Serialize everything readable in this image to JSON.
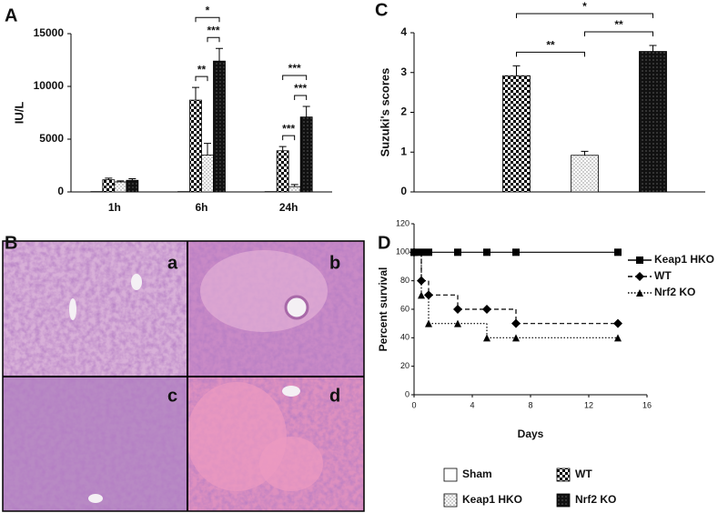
{
  "chart_data": [
    {
      "panel": "A",
      "type": "bar",
      "y_label": "IU/L",
      "categories": [
        "1h",
        "6h",
        "24h"
      ],
      "ylim": [
        0,
        15000
      ],
      "yticks": [
        0,
        5000,
        10000,
        15000
      ],
      "series": [
        {
          "name": "Sham",
          "pattern": "blank",
          "values": [
            30,
            30,
            30
          ]
        },
        {
          "name": "WT",
          "pattern": "checker",
          "values": [
            1150,
            8700,
            3900
          ],
          "errors": [
            150,
            1200,
            400
          ]
        },
        {
          "name": "Keap1 HKO",
          "pattern": "dots",
          "values": [
            950,
            3500,
            500
          ],
          "errors": [
            100,
            1100,
            200
          ]
        },
        {
          "name": "Nrf2 KO",
          "pattern": "dark",
          "values": [
            1100,
            12400,
            7100
          ],
          "errors": [
            150,
            1200,
            1000
          ]
        }
      ],
      "annotations": [
        {
          "text": "**",
          "category": 1,
          "between": [
            1,
            2
          ]
        },
        {
          "text": "***",
          "category": 1,
          "between": [
            2,
            3
          ]
        },
        {
          "text": "*",
          "category": 1,
          "between": [
            1,
            3
          ]
        },
        {
          "text": "***",
          "category": 2,
          "between": [
            1,
            2
          ]
        },
        {
          "text": "***",
          "category": 2,
          "between": [
            2,
            3
          ]
        },
        {
          "text": "***",
          "category": 2,
          "between": [
            1,
            3
          ]
        }
      ]
    },
    {
      "panel": "C",
      "type": "bar",
      "y_label": "Suzuki's scores",
      "categories": [
        null,
        null,
        null,
        null
      ],
      "values": [
        0,
        2.92,
        0.92,
        3.53
      ],
      "errors": [
        0,
        0.25,
        0.1,
        0.15
      ],
      "patterns": [
        "blank",
        "checker",
        "dots",
        "dark"
      ],
      "ylim": [
        0,
        4
      ],
      "yticks": [
        0,
        1,
        2,
        3,
        4
      ],
      "annotations": [
        {
          "text": "**",
          "between": [
            1,
            2
          ]
        },
        {
          "text": "**",
          "between": [
            2,
            3
          ]
        },
        {
          "text": "*",
          "between": [
            1,
            3
          ]
        }
      ]
    },
    {
      "panel": "D",
      "type": "line",
      "step": true,
      "legend": "right",
      "x_label": "Days",
      "y_label": "Percent survival",
      "xlim": [
        0,
        16
      ],
      "xticks": [
        0,
        4,
        8,
        12,
        16
      ],
      "ylim": [
        0,
        120
      ],
      "yticks": [
        0,
        20,
        40,
        60,
        80,
        100,
        120
      ],
      "series": [
        {
          "name": "Keap1 HKO",
          "marker": "square",
          "dash": "solid",
          "x": [
            0,
            0.5,
            1,
            3,
            5,
            7,
            14
          ],
          "values": [
            100,
            100,
            100,
            100,
            100,
            100,
            100
          ]
        },
        {
          "name": "WT",
          "marker": "diamond",
          "dash": "dashed",
          "x": [
            0,
            0.5,
            1,
            3,
            5,
            7,
            14
          ],
          "values": [
            100,
            80,
            70,
            60,
            60,
            50,
            50
          ]
        },
        {
          "name": "Nrf2 KO",
          "marker": "triangle",
          "dash": "dotted",
          "x": [
            0,
            0.5,
            1,
            3,
            5,
            7,
            14
          ],
          "values": [
            100,
            70,
            50,
            50,
            40,
            40,
            40
          ]
        }
      ]
    }
  ],
  "histology": {
    "panel": "B",
    "labels": [
      "a",
      "b",
      "c",
      "d"
    ]
  }
}
